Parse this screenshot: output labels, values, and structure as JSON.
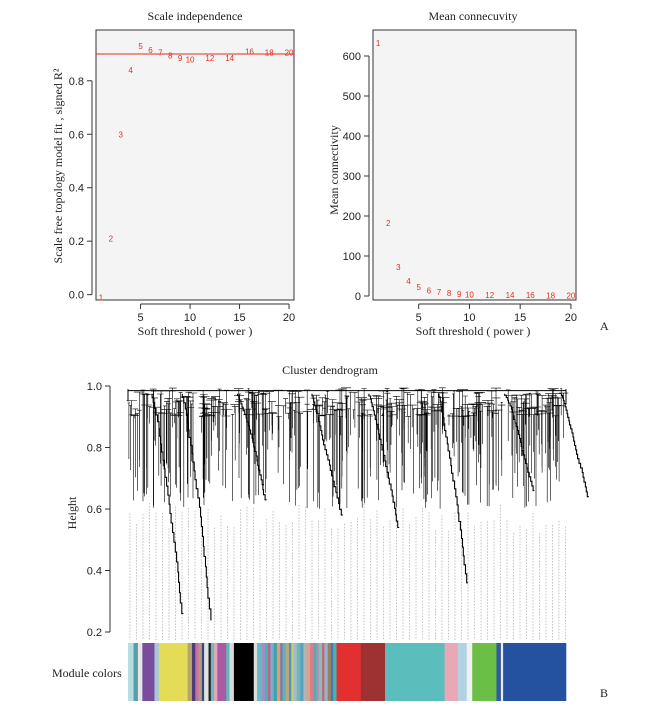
{
  "chart_data": [
    {
      "type": "scatter",
      "title": "Scale independence",
      "xlabel": "Soft threshold ( power )",
      "ylabel": "Scale free topology model fit , signed R²",
      "xlim": [
        0.5,
        20.5
      ],
      "ylim": [
        -0.02,
        0.99
      ],
      "xticks": [
        5,
        10,
        15,
        20
      ],
      "yticks": [
        0.0,
        0.2,
        0.4,
        0.6,
        0.8
      ],
      "ytick_labels": [
        "0.0",
        "0.2",
        "0.4",
        "0.6",
        "0.8"
      ],
      "threshold_line": 0.9,
      "line_color": "#e0301e",
      "point_color": "#e0301e",
      "x": [
        1,
        2,
        3,
        4,
        5,
        6,
        7,
        8,
        9,
        10,
        12,
        14,
        16,
        18,
        20
      ],
      "y": [
        -0.01,
        0.21,
        0.6,
        0.84,
        0.93,
        0.915,
        0.905,
        0.895,
        0.885,
        0.88,
        0.885,
        0.885,
        0.91,
        0.905,
        0.905
      ],
      "labels": [
        "1",
        "2",
        "3",
        "4",
        "5",
        "6",
        "7",
        "8",
        "9",
        "10",
        "12",
        "14",
        "16",
        "18",
        "20"
      ]
    },
    {
      "type": "scatter",
      "title": "Mean connecuvity",
      "xlabel": "Soft threshold ( power )",
      "ylabel": "Mean connectivity",
      "xlim": [
        0.5,
        20.5
      ],
      "ylim": [
        -10,
        665
      ],
      "xticks": [
        5,
        10,
        15,
        20
      ],
      "yticks": [
        0,
        100,
        200,
        300,
        400,
        500,
        600
      ],
      "point_color": "#e0301e",
      "x": [
        1,
        2,
        3,
        4,
        5,
        6,
        7,
        8,
        9,
        10,
        12,
        14,
        16,
        18,
        20
      ],
      "y": [
        632,
        182,
        72,
        37,
        22,
        14,
        10,
        7,
        5,
        4,
        3,
        2,
        2,
        1,
        1
      ],
      "labels": [
        "1",
        "2",
        "3",
        "4",
        "5",
        "6",
        "7",
        "8",
        "9",
        "10",
        "12",
        "14",
        "16",
        "18",
        "20"
      ]
    },
    {
      "type": "dendrogram",
      "title": "Cluster dendrogram",
      "ylabel": "Height",
      "ylim": [
        0.2,
        1.0
      ],
      "yticks": [
        0.2,
        0.4,
        0.6,
        0.8,
        1.0
      ],
      "module_colors_label": "Module colors",
      "module_colors": [
        {
          "color": "#b7dfe3",
          "width": 5
        },
        {
          "color": "#5c9ea8",
          "width": 4
        },
        {
          "color": "#e6e6e6",
          "width": 4
        },
        {
          "color": "#7a4d9c",
          "width": 11
        },
        {
          "color": "#a9c6d6",
          "width": 4
        },
        {
          "color": "#e4dc56",
          "width": 26
        },
        {
          "color": "#b6a56a",
          "width": 4
        },
        {
          "color": "#4f3d7a",
          "width": 3
        },
        {
          "color": "#c86ea8",
          "width": 3
        },
        {
          "color": "#b89a78",
          "width": 3
        },
        {
          "color": "#2a4a80",
          "width": 2
        },
        {
          "color": "#e2e2e2",
          "width": 4
        },
        {
          "color": "#1e1e1e",
          "width": 2
        },
        {
          "color": "#6fb5be",
          "width": 3
        },
        {
          "color": "#e2a6b4",
          "width": 3
        },
        {
          "color": "#a95aa3",
          "width": 8
        },
        {
          "color": "#5fb9b9",
          "width": 3
        },
        {
          "color": "#d8d8d8",
          "width": 4
        },
        {
          "color": "#000000",
          "width": 18
        },
        {
          "color": "#dedede",
          "width": 3
        },
        {
          "color": "#66bcc4",
          "width": 4
        },
        {
          "color": "#a88cc6",
          "width": 3
        },
        {
          "color": "#4cb0b7",
          "width": 3
        },
        {
          "color": "#c75a7a",
          "width": 2
        },
        {
          "color": "#7eaad0",
          "width": 3
        },
        {
          "color": "#3fa3a8",
          "width": 3
        },
        {
          "color": "#d6a46a",
          "width": 3
        },
        {
          "color": "#8f6cb8",
          "width": 2
        },
        {
          "color": "#58b6b6",
          "width": 3
        },
        {
          "color": "#bca57f",
          "width": 3
        },
        {
          "color": "#4a8fbf",
          "width": 2
        },
        {
          "color": "#d1cd62",
          "width": 2
        },
        {
          "color": "#9bbcd3",
          "width": 3
        },
        {
          "color": "#76b7a8",
          "width": 3
        },
        {
          "color": "#5aa0c0",
          "width": 3
        },
        {
          "color": "#b3b3b3",
          "width": 3
        },
        {
          "color": "#d6a48a",
          "width": 3
        },
        {
          "color": "#e07a8a",
          "width": 3
        },
        {
          "color": "#50b0b0",
          "width": 3
        },
        {
          "color": "#b88ab8",
          "width": 2
        },
        {
          "color": "#7fc1c1",
          "width": 3
        },
        {
          "color": "#e05a5a",
          "width": 2
        },
        {
          "color": "#88b7d8",
          "width": 3
        },
        {
          "color": "#9a7e62",
          "width": 3
        },
        {
          "color": "#3d7fb3",
          "width": 2
        },
        {
          "color": "#4fb2b2",
          "width": 3
        },
        {
          "color": "#e23030",
          "width": 22
        },
        {
          "color": "#9e3232",
          "width": 22
        },
        {
          "color": "#5cbdbd",
          "width": 54
        },
        {
          "color": "#eaa8b6",
          "width": 12
        },
        {
          "color": "#b0d2e2",
          "width": 8
        },
        {
          "color": "#f1f1f1",
          "width": 5
        },
        {
          "color": "#6cbf46",
          "width": 22
        },
        {
          "color": "#335aa0",
          "width": 4
        },
        {
          "color": "#ececec",
          "width": 2
        },
        {
          "color": "#2451a0",
          "width": 57
        }
      ],
      "main_drops": [
        {
          "x": 0.055,
          "y": 0.26
        },
        {
          "x": 0.124,
          "y": 0.24
        },
        {
          "x": 0.25,
          "y": 0.63
        },
        {
          "x": 0.42,
          "y": 0.58
        },
        {
          "x": 0.55,
          "y": 0.54
        },
        {
          "x": 0.71,
          "y": 0.36
        },
        {
          "x": 0.86,
          "y": 0.66
        },
        {
          "x": 0.99,
          "y": 0.64
        }
      ]
    }
  ],
  "panel_labels": {
    "a": "A",
    "b": "B"
  }
}
